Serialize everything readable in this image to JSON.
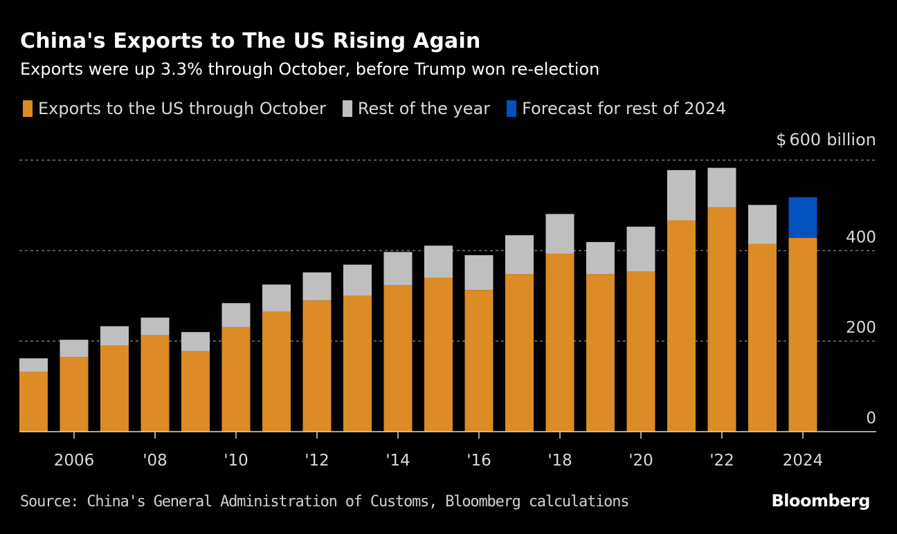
{
  "colors": {
    "through_october": "#dc8b26",
    "rest_of_year": "#bfbfbf",
    "forecast": "#0452c0",
    "grid": "#777777",
    "axis": "#d9d9d9"
  },
  "footer": {
    "source": "Source: China's General Administration of Customs, Bloomberg calculations",
    "logo": "Bloomberg"
  },
  "chart_data": {
    "type": "bar",
    "stacked": true,
    "title": "China's Exports to The US Rising Again",
    "subtitle": "Exports were up 3.3% through October, before Trump won re-election",
    "legend": [
      {
        "key": "through_october",
        "label": "Exports to the US through October"
      },
      {
        "key": "rest_of_year",
        "label": "Rest of the year"
      },
      {
        "key": "forecast",
        "label": "Forecast for rest of 2024"
      }
    ],
    "legend_position": "top-left",
    "xlabel": "",
    "ylabel": "$600 billion",
    "y_unit_label": {
      "prefix": "$",
      "value": "600",
      "suffix": "billion"
    },
    "ylim": [
      0,
      600
    ],
    "yticks": [
      0,
      200,
      400,
      600
    ],
    "ytick_labels": [
      "0",
      "200",
      "400",
      ""
    ],
    "y_axis_position": "right",
    "grid": true,
    "categories": [
      2005,
      2006,
      2007,
      2008,
      2009,
      2010,
      2011,
      2012,
      2013,
      2014,
      2015,
      2016,
      2017,
      2018,
      2019,
      2020,
      2021,
      2022,
      2023,
      2024
    ],
    "xticks": [
      {
        "year": 2006,
        "label": "2006"
      },
      {
        "year": 2008,
        "label": "'08"
      },
      {
        "year": 2010,
        "label": "'10"
      },
      {
        "year": 2012,
        "label": "'12"
      },
      {
        "year": 2014,
        "label": "'14"
      },
      {
        "year": 2016,
        "label": "'16"
      },
      {
        "year": 2018,
        "label": "'18"
      },
      {
        "year": 2020,
        "label": "'20"
      },
      {
        "year": 2022,
        "label": "'22"
      },
      {
        "year": 2024,
        "label": "2024"
      }
    ],
    "series": [
      {
        "name": "Exports to the US through October",
        "key": "through_october",
        "values": [
          132,
          165,
          190,
          213,
          178,
          231,
          265,
          290,
          300,
          324,
          340,
          313,
          348,
          393,
          348,
          354,
          467,
          496,
          415,
          428
        ]
      },
      {
        "name": "Rest of the year",
        "key": "rest_of_year",
        "values": [
          30,
          38,
          43,
          39,
          42,
          53,
          60,
          62,
          69,
          73,
          71,
          77,
          86,
          88,
          71,
          99,
          111,
          87,
          86,
          null
        ]
      },
      {
        "name": "Forecast for rest of 2024",
        "key": "forecast",
        "values": [
          null,
          null,
          null,
          null,
          null,
          null,
          null,
          null,
          null,
          null,
          null,
          null,
          null,
          null,
          null,
          null,
          null,
          null,
          null,
          90
        ]
      }
    ]
  }
}
